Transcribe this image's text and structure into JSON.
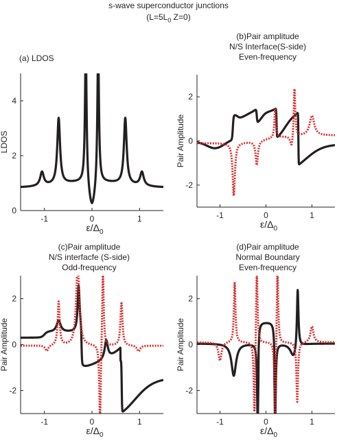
{
  "figure": {
    "title_line1": "s-wave superconductor junctions",
    "title_line2": "(L=5L",
    "title_line2_sub": "0",
    "title_line2_tail": " Z=0)"
  },
  "colors": {
    "black_series": "#231f20",
    "red_series": "#d92b2b",
    "axes": "#231f20"
  },
  "chart_data": [
    {
      "id": "a",
      "type": "line",
      "title_lines": [
        "(a)  LDOS"
      ],
      "xlabel": "ε/Δ",
      "xlabel_sub": "0",
      "ylabel": "LDOS",
      "xlim": [
        -1.5,
        1.5
      ],
      "ylim": [
        0,
        5
      ],
      "xticks": [
        -1,
        0,
        1
      ],
      "yticks": [
        0,
        2,
        4
      ],
      "grid": false,
      "series": [
        {
          "style": "solid-black",
          "features": [
            {
              "x": -1.48,
              "y": 0.95
            },
            {
              "x": -1.05,
              "y": 1.45
            },
            {
              "x": -0.7,
              "y": 3.4
            },
            {
              "x": -0.13,
              "y": 5.0
            },
            {
              "x": 0.0,
              "y": 0.1
            },
            {
              "x": 0.13,
              "y": 5.0
            },
            {
              "x": 0.7,
              "y": 3.4
            },
            {
              "x": 1.05,
              "y": 1.45
            },
            {
              "x": 1.48,
              "y": 0.95
            }
          ]
        }
      ]
    },
    {
      "id": "b",
      "type": "line",
      "title_lines": [
        "(b)Pair  amplitude",
        "N/S Interface(S-side)",
        "Even-frequency"
      ],
      "xlabel": "ε/Δ",
      "xlabel_sub": "0",
      "ylabel": "Pair Amplitude",
      "xlim": [
        -1.5,
        1.5
      ],
      "ylim": [
        -3,
        3
      ],
      "xticks": [
        -1,
        0,
        1
      ],
      "yticks": [
        -2,
        0,
        2
      ],
      "grid": false,
      "series": [
        {
          "style": "solid-black",
          "features": [
            {
              "x": -1.48,
              "y": -0.05
            },
            {
              "x": -1.1,
              "y": -0.35
            },
            {
              "x": -0.7,
              "y": 0.85
            },
            {
              "x": -0.6,
              "y": 0.6
            },
            {
              "x": -0.22,
              "y": 1.35
            },
            {
              "x": -0.18,
              "y": 0.4
            },
            {
              "x": 0.0,
              "y": 1.05
            },
            {
              "x": 0.22,
              "y": 1.45
            },
            {
              "x": 0.23,
              "y": 0.0
            },
            {
              "x": 0.7,
              "y": 1.1
            },
            {
              "x": 0.71,
              "y": -1.25
            },
            {
              "x": 1.48,
              "y": -0.1
            }
          ]
        },
        {
          "style": "dotted-red",
          "features": [
            {
              "x": -1.48,
              "y": -0.1
            },
            {
              "x": -0.7,
              "y": -2.6
            },
            {
              "x": -0.62,
              "y": -0.7
            },
            {
              "x": -0.2,
              "y": -1.4
            },
            {
              "x": 0.0,
              "y": 0.3
            },
            {
              "x": 0.2,
              "y": 1.45
            },
            {
              "x": 0.6,
              "y": -0.5
            },
            {
              "x": 0.62,
              "y": 2.6
            },
            {
              "x": 1.0,
              "y": 1.15
            },
            {
              "x": 1.48,
              "y": 0.3
            }
          ]
        }
      ]
    },
    {
      "id": "c",
      "type": "line",
      "title_lines": [
        "(c)Pair  amplitude",
        "N/S interfacfe (S-side)",
        "Odd-frequency"
      ],
      "xlabel": "ε/Δ",
      "xlabel_sub": "0",
      "ylabel": "Pair Amplitude",
      "xlim": [
        -1.5,
        1.5
      ],
      "ylim": [
        -3,
        3
      ],
      "xticks": [
        -1,
        0,
        1
      ],
      "yticks": [
        -2,
        0,
        2
      ],
      "grid": false,
      "series": [
        {
          "style": "solid-black",
          "features": [
            {
              "x": -1.48,
              "y": 0.3
            },
            {
              "x": -1.0,
              "y": 0.55
            },
            {
              "x": -0.7,
              "y": 1.0
            },
            {
              "x": -0.3,
              "y": 2.4
            },
            {
              "x": -0.2,
              "y": -1.1
            },
            {
              "x": 0.05,
              "y": -0.6
            },
            {
              "x": 0.3,
              "y": 1.25
            },
            {
              "x": 0.62,
              "y": 0.3
            },
            {
              "x": 0.63,
              "y": -1.9
            },
            {
              "x": 1.48,
              "y": -0.1
            }
          ]
        },
        {
          "style": "dotted-red",
          "features": [
            {
              "x": -1.48,
              "y": 0.0
            },
            {
              "x": -0.95,
              "y": -0.3
            },
            {
              "x": -0.7,
              "y": 1.9
            },
            {
              "x": -0.3,
              "y": 3.0
            },
            {
              "x": 0.05,
              "y": 0.0
            },
            {
              "x": 0.18,
              "y": -3.0
            },
            {
              "x": 0.22,
              "y": 3.0
            },
            {
              "x": 0.62,
              "y": 1.85
            },
            {
              "x": 1.0,
              "y": -0.3
            },
            {
              "x": 1.48,
              "y": -0.05
            }
          ]
        }
      ]
    },
    {
      "id": "d",
      "type": "line",
      "title_lines": [
        "(d)Pair  amplitude",
        "Normal Boundary",
        "Even-frequency"
      ],
      "xlabel": "ε/Δ",
      "xlabel_sub": "0",
      "ylabel": "Pair Amplitude",
      "xlim": [
        -1.5,
        1.5
      ],
      "ylim": [
        -3,
        3
      ],
      "xticks": [
        -1,
        0,
        1
      ],
      "yticks": [
        -2,
        0,
        2
      ],
      "grid": false,
      "series": [
        {
          "style": "solid-black",
          "features": [
            {
              "x": -1.48,
              "y": 0.05
            },
            {
              "x": -0.7,
              "y": -1.5
            },
            {
              "x": -0.2,
              "y": 0.5
            },
            {
              "x": -0.18,
              "y": -3.0
            },
            {
              "x": -0.1,
              "y": 1.0
            },
            {
              "x": 0.18,
              "y": 0.9
            },
            {
              "x": 0.2,
              "y": -3.0
            },
            {
              "x": 0.68,
              "y": -0.6
            },
            {
              "x": 0.69,
              "y": 2.5
            },
            {
              "x": 1.48,
              "y": -0.05
            }
          ]
        },
        {
          "style": "dotted-red",
          "features": [
            {
              "x": -1.48,
              "y": 0.1
            },
            {
              "x": -1.0,
              "y": -0.8
            },
            {
              "x": -0.68,
              "y": 2.7
            },
            {
              "x": -0.25,
              "y": -3.0
            },
            {
              "x": -0.22,
              "y": 3.0
            },
            {
              "x": 0.0,
              "y": 0.0
            },
            {
              "x": 0.22,
              "y": -3.0
            },
            {
              "x": 0.25,
              "y": 3.0
            },
            {
              "x": 0.68,
              "y": -2.6
            },
            {
              "x": 1.0,
              "y": 0.75
            },
            {
              "x": 1.48,
              "y": 0.1
            }
          ]
        }
      ]
    }
  ]
}
